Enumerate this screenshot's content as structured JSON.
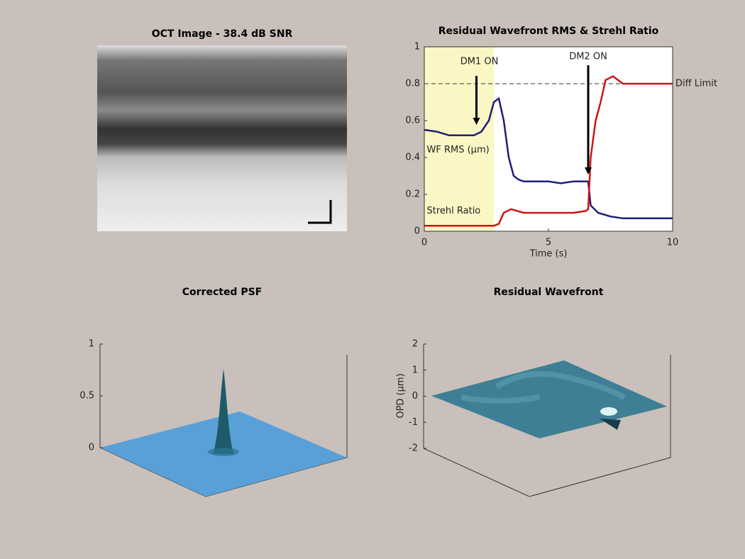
{
  "chart_data": [
    {
      "type": "image",
      "title": "OCT Image - 38.4 dB SNR"
    },
    {
      "type": "line",
      "title": "Residual Wavefront RMS & Strehl Ratio",
      "xlabel": "Time (s)",
      "xlim": [
        0,
        10
      ],
      "ylim": [
        0,
        1
      ],
      "xticks": [
        0,
        5,
        10
      ],
      "yticks": [
        0,
        0.2,
        0.4,
        0.6,
        0.8,
        1
      ],
      "shade": [
        0,
        2.8
      ],
      "shade_color": "#fbf7c4",
      "reference": {
        "label": "Diff Limit",
        "y": 0.8
      },
      "annotations": [
        {
          "text": "DM1 ON",
          "x": 2.1
        },
        {
          "text": "DM2 ON",
          "x": 6.6
        }
      ],
      "series": [
        {
          "name": "WF RMS (μm)",
          "color": "#1e1e78",
          "x": [
            0,
            0.5,
            1,
            1.5,
            2,
            2.3,
            2.6,
            2.8,
            3.0,
            3.2,
            3.4,
            3.6,
            3.8,
            4,
            4.5,
            5,
            5.5,
            6,
            6.5,
            6.6,
            6.7,
            7,
            7.5,
            8,
            9,
            10
          ],
          "values": [
            0.55,
            0.54,
            0.52,
            0.52,
            0.52,
            0.54,
            0.6,
            0.7,
            0.72,
            0.6,
            0.4,
            0.3,
            0.28,
            0.27,
            0.27,
            0.27,
            0.26,
            0.27,
            0.27,
            0.27,
            0.14,
            0.1,
            0.08,
            0.07,
            0.07,
            0.07
          ]
        },
        {
          "name": "Strehl Ratio",
          "color": "#cc1414",
          "x": [
            0,
            0.5,
            1,
            1.5,
            2,
            2.5,
            2.8,
            3.0,
            3.2,
            3.5,
            4,
            4.5,
            5,
            5.5,
            6,
            6.5,
            6.6,
            6.7,
            6.9,
            7.1,
            7.3,
            7.6,
            8,
            9,
            10
          ],
          "values": [
            0.03,
            0.03,
            0.03,
            0.03,
            0.03,
            0.03,
            0.03,
            0.04,
            0.1,
            0.12,
            0.1,
            0.1,
            0.1,
            0.1,
            0.1,
            0.11,
            0.12,
            0.4,
            0.6,
            0.7,
            0.82,
            0.84,
            0.8,
            0.8,
            0.8
          ]
        }
      ]
    },
    {
      "type": "surface",
      "title": "Corrected PSF",
      "zlim": [
        0,
        1
      ],
      "zticks": [
        0,
        0.5,
        1
      ]
    },
    {
      "type": "surface",
      "title": "Residual Wavefront",
      "zlabel": "OPD (μm)",
      "zlim": [
        -2,
        2
      ],
      "zticks": [
        -2,
        -1,
        0,
        1,
        2
      ]
    }
  ]
}
